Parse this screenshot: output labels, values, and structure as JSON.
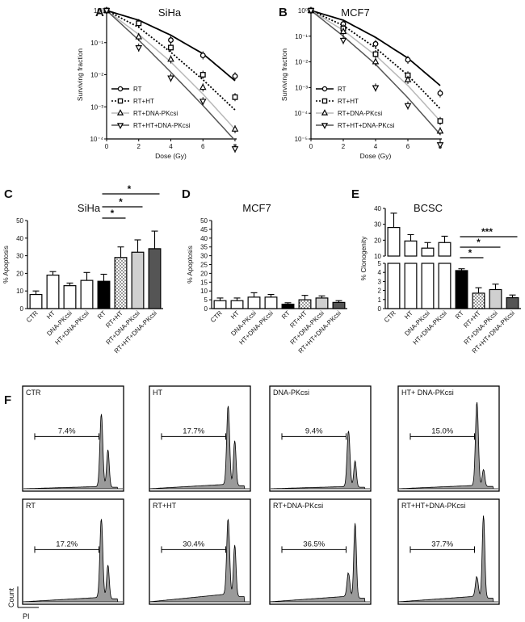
{
  "panels": [
    {
      "letter": "A",
      "title": "SiHa"
    },
    {
      "letter": "B",
      "title": "MCF7"
    },
    {
      "letter": "C",
      "title": "SiHa"
    },
    {
      "letter": "D",
      "title": "MCF7"
    },
    {
      "letter": "E",
      "title": "BCSC"
    },
    {
      "letter": "F",
      "title": ""
    }
  ],
  "chart_data": [
    {
      "type": "line",
      "title": "SiHa",
      "xlabel": "Dose (Gy)",
      "ylabel": "Surviving fraction",
      "x": [
        0,
        2,
        4,
        6,
        8
      ],
      "x_ticks": [
        "0",
        "2",
        "4",
        "6",
        "8"
      ],
      "y_scale": "log",
      "ylim": [
        0.0001,
        1
      ],
      "y_ticks": [
        "10⁰",
        "10⁻¹",
        "10⁻²",
        "10⁻³",
        "10⁻⁴"
      ],
      "legend": "bottom-left",
      "series": [
        {
          "name": "RT",
          "marker": "circle",
          "line": "solid",
          "color": "#000000",
          "values": [
            1,
            0.4,
            0.12,
            0.04,
            0.009
          ],
          "curve": [
            1,
            0.5,
            0.17,
            0.045,
            0.0065
          ]
        },
        {
          "name": "RT+HT",
          "marker": "square",
          "line": "dotted",
          "color": "#000000",
          "values": [
            1,
            0.4,
            0.07,
            0.01,
            0.002
          ],
          "curve": [
            1,
            0.3,
            0.05,
            0.007,
            0.0008
          ]
        },
        {
          "name": "RT+DNA-PKcsi",
          "marker": "triangle-up",
          "line": "solid",
          "color": "#b8b8b8",
          "values": [
            1,
            0.15,
            0.03,
            0.004,
            0.0002
          ],
          "curve": [
            1,
            0.18,
            0.025,
            0.0025,
            0.0002
          ]
        },
        {
          "name": "RT+HT+DNA-PKcsi",
          "marker": "triangle-down",
          "line": "solid",
          "color": "#555555",
          "values": [
            1,
            0.07,
            0.008,
            0.0015,
            2e-05
          ],
          "curve": [
            1,
            0.12,
            0.012,
            0.0011,
            9e-05
          ]
        }
      ]
    },
    {
      "type": "line",
      "title": "MCF7",
      "xlabel": "Dose (Gy)",
      "ylabel": "Surviving fraction",
      "x": [
        0,
        2,
        4,
        6,
        8
      ],
      "x_ticks": [
        "0",
        "2",
        "4",
        "6",
        "8"
      ],
      "y_scale": "log",
      "ylim": [
        1e-05,
        1
      ],
      "y_ticks": [
        "10⁰",
        "10⁻¹",
        "10⁻²",
        "10⁻³",
        "10⁻⁴",
        "10⁻⁵"
      ],
      "legend": "bottom-left",
      "series": [
        {
          "name": "RT",
          "marker": "circle",
          "line": "solid",
          "color": "#000000",
          "values": [
            1,
            0.3,
            0.05,
            0.012,
            0.0006
          ],
          "curve": [
            1,
            0.42,
            0.09,
            0.014,
            0.0012
          ]
        },
        {
          "name": "RT+HT",
          "marker": "square",
          "line": "dotted",
          "color": "#000000",
          "values": [
            1,
            0.2,
            0.02,
            0.003,
            5e-05
          ],
          "curve": [
            1,
            0.26,
            0.035,
            0.003,
            0.00015
          ]
        },
        {
          "name": "RT+DNA-PKcsi",
          "marker": "triangle-up",
          "line": "solid",
          "color": "#b8b8b8",
          "values": [
            1,
            0.15,
            0.01,
            0.002,
            2e-05
          ],
          "curve": [
            1,
            0.17,
            0.018,
            0.0012,
            5e-05
          ]
        },
        {
          "name": "RT+HT+DNA-PKcsi",
          "marker": "triangle-down",
          "line": "solid",
          "color": "#555555",
          "values": [
            1,
            0.07,
            0.001,
            0.0002,
            6e-06
          ],
          "curve": [
            1,
            0.1,
            0.008,
            0.0004,
            1.5e-05
          ]
        }
      ]
    },
    {
      "type": "bar",
      "title": "SiHa",
      "ylabel": "% Apoptosis",
      "ylim": [
        0,
        50
      ],
      "y_ticks": [
        0,
        10,
        20,
        30,
        40,
        50
      ],
      "categories": [
        "CTR",
        "HT",
        "DNA-PKcsi",
        "HT+DNA-PKcsi",
        "RT",
        "RT+HT",
        "RT+DNA-PKcsi",
        "RT+HT+DNA-PKcsi"
      ],
      "values": [
        8,
        19,
        13,
        16,
        15.5,
        29,
        32,
        34
      ],
      "errors": [
        2,
        2,
        1.5,
        4.5,
        4,
        6,
        7,
        10
      ],
      "fills": [
        "white",
        "white",
        "white",
        "white",
        "black",
        "dots",
        "#d0d0d0",
        "#555555"
      ],
      "significance": [
        {
          "from": "RT",
          "to": "RT+HT",
          "label": "*"
        },
        {
          "from": "RT",
          "to": "RT+DNA-PKcsi",
          "label": "*"
        },
        {
          "from": "RT",
          "to": "RT+HT+DNA-PKcsi",
          "label": "*"
        }
      ]
    },
    {
      "type": "bar",
      "title": "MCF7",
      "ylabel": "% Apoptosis",
      "ylim": [
        0,
        50
      ],
      "y_ticks": [
        0,
        5,
        10,
        15,
        20,
        25,
        30,
        35,
        40,
        45,
        50
      ],
      "categories": [
        "CTR",
        "HT",
        "DNA-PKcsi",
        "HT+DNA-PKcsi",
        "RT",
        "RT+HT",
        "RT+DNA-PKcsi",
        "RT+HT+DNA-PKcsi"
      ],
      "values": [
        4.5,
        4.5,
        6.5,
        6.5,
        2.5,
        5,
        6,
        3.5
      ],
      "errors": [
        1.5,
        1.5,
        2.5,
        1.5,
        0.8,
        2.5,
        1.2,
        1
      ],
      "fills": [
        "white",
        "white",
        "white",
        "white",
        "black",
        "dots",
        "#d0d0d0",
        "#555555"
      ],
      "significance": []
    },
    {
      "type": "bar",
      "title": "BCSC",
      "ylabel": "% Clonogenity",
      "axis_break": {
        "lower_range": [
          0,
          5
        ],
        "upper_range": [
          10,
          40
        ]
      },
      "lower_ticks": [
        0,
        1,
        2,
        3,
        4,
        5
      ],
      "upper_ticks": [
        10,
        20,
        30,
        40
      ],
      "categories": [
        "CTR",
        "HT",
        "DNA-PKcsi",
        "HT+DNA-PKcsi",
        "RT",
        "RT+HT",
        "RT+DNA-PKcsi",
        "RT+HT+DNA-PKcsi"
      ],
      "values": [
        28,
        19.5,
        15,
        18.5,
        4.2,
        1.7,
        2.1,
        1.2
      ],
      "errors": [
        9,
        4,
        3.5,
        4,
        0.2,
        0.6,
        0.6,
        0.3
      ],
      "fills": [
        "white",
        "white",
        "white",
        "white",
        "black",
        "dots",
        "#d0d0d0",
        "#555555"
      ],
      "significance": [
        {
          "from": "RT",
          "to": "RT+HT",
          "label": "*"
        },
        {
          "from": "RT",
          "to": "RT+DNA-PKcsi",
          "label": "*"
        },
        {
          "from": "RT",
          "to": "RT+HT+DNA-PKcsi",
          "label": "***"
        }
      ]
    },
    {
      "type": "histogram",
      "xlabel": "PI",
      "ylabel": "Count",
      "panels": [
        {
          "label": "CTR",
          "sub_g1_percent": "7.4%",
          "g1_height": 0.78,
          "g2_height": 0.4,
          "sub_g1_level": 0.02
        },
        {
          "label": "HT",
          "sub_g1_percent": "17.7%",
          "g1_height": 0.85,
          "g2_height": 0.48,
          "sub_g1_level": 0.04
        },
        {
          "label": "DNA-PKcsi",
          "sub_g1_percent": "9.4%",
          "g1_height": 0.6,
          "g2_height": 0.28,
          "sub_g1_level": 0.02
        },
        {
          "label": "HT+ DNA-PKcsi",
          "sub_g1_percent": "15.0%",
          "g1_height": 0.9,
          "g2_height": 0.18,
          "sub_g1_level": 0.03
        },
        {
          "label": "RT",
          "sub_g1_percent": "17.2%",
          "g1_height": 0.85,
          "g2_height": 0.36,
          "sub_g1_level": 0.04
        },
        {
          "label": "RT+HT",
          "sub_g1_percent": "30.4%",
          "g1_height": 0.82,
          "g2_height": 0.55,
          "sub_g1_level": 0.07
        },
        {
          "label": "RT+DNA-PKcsi",
          "sub_g1_percent": "36.5%",
          "g1_height": 0.26,
          "g2_height": 0.8,
          "sub_g1_level": 0.05
        },
        {
          "label": "RT+HT+DNA-PKcsi",
          "sub_g1_percent": "37.7%",
          "g1_height": 0.22,
          "g2_height": 0.88,
          "sub_g1_level": 0.05
        }
      ]
    }
  ]
}
